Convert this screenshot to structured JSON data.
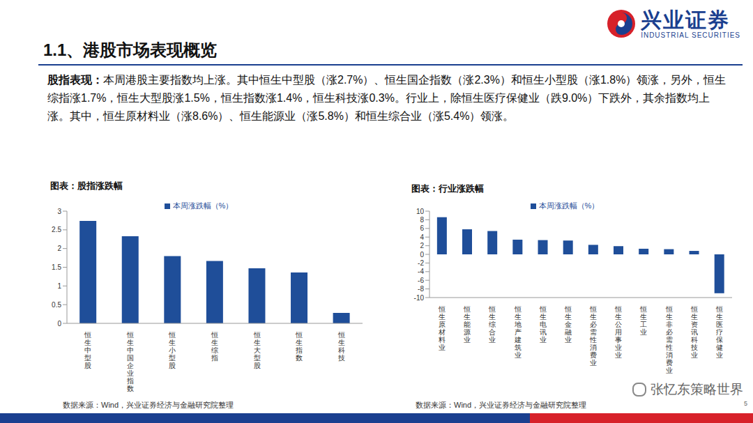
{
  "slide": {
    "title": "1.1、港股市场表现概览",
    "logo": {
      "name": "兴业证券",
      "english": "INDUSTRIAL SECURITIES"
    },
    "paragraph": {
      "lead": "股指表现：",
      "body": "本周港股主要指数均上涨。其中恒生中型股（涨2.7%）、恒生国企指数（涨2.3%）和恒生小型股（涨1.8%）领涨，另外，恒生综指涨1.7%，恒生大型股涨1.5%，恒生指数涨1.4%，恒生科技涨0.3%。行业上，除恒生医疗保健业（跌9.0%）下跌外，其余指数均上涨。其中，恒生原材料业（涨8.6%）、恒生能源业（涨5.8%）和恒生综合业（涨5.4%）领涨。"
    },
    "sources": [
      "数据来源：Wind，兴业证券经济与金融研究院整理",
      "数据来源：Wind，兴业证券经济与金融研究院整理"
    ],
    "watermark": "张忆东策略世界",
    "page": "5"
  },
  "chart_data": [
    {
      "type": "bar",
      "title": "图表：股指涨跌幅",
      "categories": [
        "恒生中型股",
        "恒生中国企业指数",
        "恒生小型股",
        "恒生综指",
        "恒生大型股",
        "恒生指数",
        "恒生科技"
      ],
      "series": [
        {
          "name": "本周涨跌幅（%）",
          "color": "#1f4e99",
          "values": [
            2.74,
            2.33,
            1.8,
            1.67,
            1.47,
            1.36,
            0.28
          ]
        }
      ],
      "ylim": [
        0,
        3
      ],
      "yticks": [
        0,
        0.5,
        1,
        1.5,
        2,
        2.5,
        3
      ],
      "grid": false,
      "legend": "top"
    },
    {
      "type": "bar",
      "title": "图表：行业涨跌幅",
      "categories": [
        "恒生原材料业",
        "恒生能源业",
        "恒生综合业",
        "恒生地产建筑业",
        "恒生电讯业",
        "恒生金融业",
        "恒生必需性消费业",
        "恒生公用事业业",
        "恒生工业",
        "恒生非必需性消费业",
        "恒生资讯科技业",
        "恒生医疗保健业"
      ],
      "series": [
        {
          "name": "本周涨跌幅（%）",
          "color": "#1f4e99",
          "values": [
            8.6,
            5.8,
            5.4,
            3.4,
            3.3,
            3.2,
            2.2,
            1.9,
            1.3,
            1.2,
            0.8,
            -9.0
          ]
        }
      ],
      "ylim": [
        -10,
        10
      ],
      "yticks": [
        -10,
        -8,
        -6,
        -4,
        -2,
        0,
        2,
        4,
        6,
        8,
        10
      ],
      "grid": false,
      "legend": "top"
    }
  ]
}
